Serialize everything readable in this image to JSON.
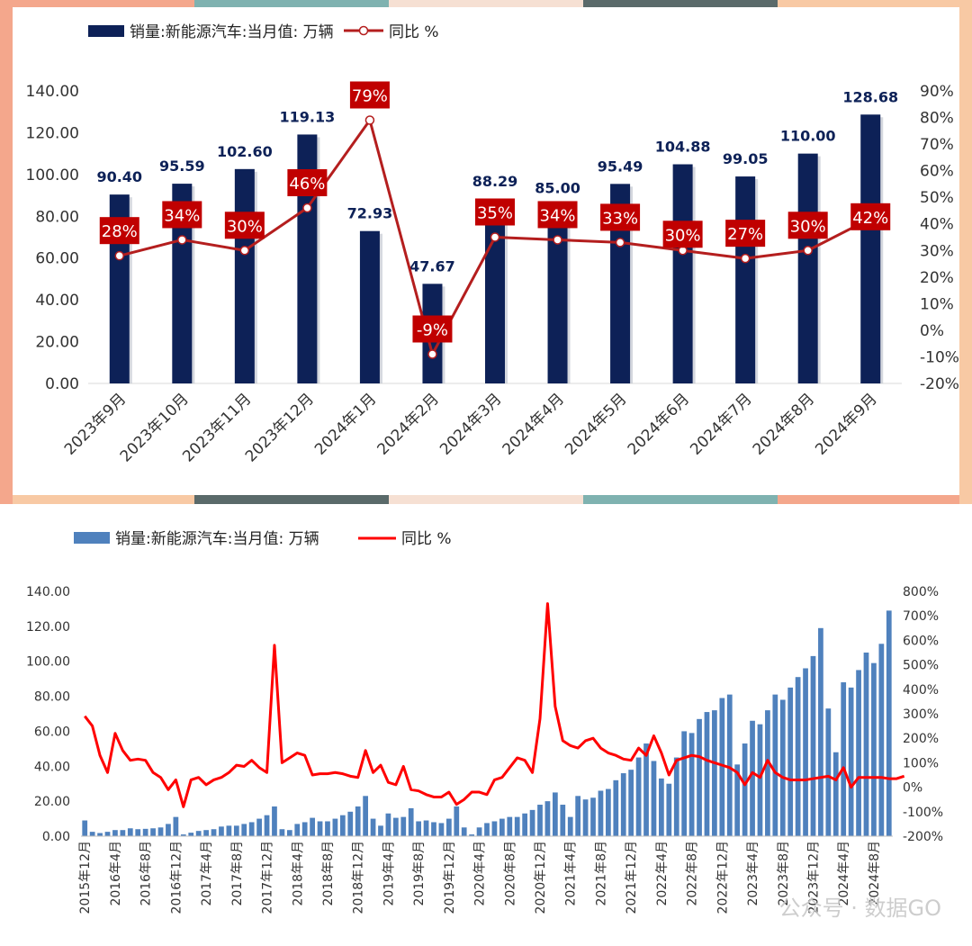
{
  "chart_data": [
    {
      "type": "bar+line",
      "legend": {
        "bar_label": "销量:新能源汽车:当月值: 万辆",
        "line_label": "同比 %",
        "placement": "top-left"
      },
      "categories": [
        "2023年9月",
        "2023年10月",
        "2023年11月",
        "2023年12月",
        "2024年1月",
        "2024年2月",
        "2024年3月",
        "2024年4月",
        "2024年5月",
        "2024年6月",
        "2024年7月",
        "2024年8月",
        "2024年9月"
      ],
      "series": [
        {
          "name": "销量:新能源汽车:当月值: 万辆",
          "type": "bar",
          "axis": "left",
          "values": [
            90.4,
            95.59,
            102.6,
            119.13,
            72.93,
            47.67,
            88.29,
            85.0,
            95.49,
            104.88,
            99.05,
            110.0,
            128.68
          ],
          "value_labels": [
            "90.40",
            "95.59",
            "102.60",
            "119.13",
            "72.93",
            "47.67",
            "88.29",
            "85.00",
            "95.49",
            "104.88",
            "99.05",
            "110.00",
            "128.68"
          ]
        },
        {
          "name": "同比 %",
          "type": "line",
          "axis": "right",
          "values": [
            28,
            34,
            30,
            46,
            79,
            -9,
            35,
            34,
            33,
            30,
            27,
            30,
            42
          ],
          "value_labels": [
            "28%",
            "34%",
            "30%",
            "46%",
            "79%",
            "-9%",
            "35%",
            "34%",
            "33%",
            "30%",
            "27%",
            "30%",
            "42%"
          ]
        }
      ],
      "y_left": {
        "ylim": [
          0,
          140
        ],
        "ticks": [
          "0.00",
          "20.00",
          "40.00",
          "60.00",
          "80.00",
          "100.00",
          "120.00",
          "140.00"
        ]
      },
      "y_right": {
        "ylim": [
          -20,
          90
        ],
        "ticks": [
          "-20%",
          "-10%",
          "0%",
          "10%",
          "20%",
          "30%",
          "40%",
          "50%",
          "60%",
          "70%",
          "80%",
          "90%"
        ]
      },
      "colors": {
        "bar": "#0d2157",
        "line": "#b41e1e",
        "label_box": "#c00000",
        "bar_label_text": "#0d2157",
        "frame_segments": [
          "#f4a78c",
          "#7fb2b0",
          "#f6e0d3",
          "#5a6a6a",
          "#f8c9a4"
        ]
      }
    },
    {
      "type": "bar+line",
      "legend": {
        "bar_label": "销量:新能源汽车:当月值: 万辆",
        "line_label": "同比 %",
        "placement": "top-left"
      },
      "x_tick_labels": [
        "2015年12月",
        "2016年4月",
        "2016年8月",
        "2016年12月",
        "2017年4月",
        "2017年8月",
        "2017年12月",
        "2018年4月",
        "2018年8月",
        "2018年12月",
        "2019年4月",
        "2019年8月",
        "2019年12月",
        "2020年4月",
        "2020年8月",
        "2020年12月",
        "2021年4月",
        "2021年8月",
        "2021年12月",
        "2022年4月",
        "2022年8月",
        "2022年12月",
        "2023年4月",
        "2023年8月",
        "2023年12月",
        "2024年4月",
        "2024年8月"
      ],
      "series": [
        {
          "name": "销量:新能源汽车:当月值: 万辆",
          "type": "bar",
          "axis": "left",
          "values": [
            9.0,
            2.5,
            1.8,
            2.5,
            3.5,
            3.5,
            4.5,
            4.0,
            4.2,
            4.5,
            5.0,
            7.0,
            11.0,
            1.0,
            2.0,
            3.0,
            3.5,
            4.0,
            5.5,
            6.0,
            6.0,
            7.0,
            8.0,
            10.0,
            12.0,
            17.0,
            4.0,
            3.5,
            7.0,
            8.0,
            10.5,
            8.5,
            8.5,
            10.0,
            12.0,
            14.0,
            17.0,
            23.0,
            10.0,
            6.0,
            13.0,
            10.5,
            11.0,
            16.0,
            8.5,
            9.0,
            8.0,
            7.5,
            10.0,
            17.0,
            5.0,
            1.0,
            5.0,
            7.5,
            8.5,
            10.0,
            11.0,
            11.0,
            13.0,
            15.0,
            18.0,
            20.0,
            25.0,
            18.0,
            11.0,
            23.0,
            21.0,
            22.0,
            26.0,
            27.0,
            32.0,
            36.0,
            38.0,
            45.0,
            53.0,
            43.0,
            33.0,
            30.0,
            45.0,
            60.0,
            59.0,
            67.0,
            71.0,
            72.0,
            79.0,
            81.0,
            41.0,
            53.0,
            66.0,
            64.0,
            72.0,
            81.0,
            78.0,
            85.0,
            91.0,
            96.0,
            103.0,
            119.0,
            73.0,
            48.0,
            88.0,
            85.0,
            95.0,
            105.0,
            99.0,
            110.0,
            129.0
          ]
        },
        {
          "name": "同比 %",
          "type": "line",
          "axis": "right",
          "values": [
            290,
            250,
            130,
            60,
            220,
            150,
            110,
            115,
            110,
            60,
            40,
            -10,
            30,
            -80,
            30,
            40,
            10,
            30,
            40,
            60,
            90,
            85,
            110,
            80,
            60,
            580,
            100,
            120,
            140,
            130,
            50,
            55,
            55,
            60,
            55,
            45,
            40,
            150,
            60,
            90,
            20,
            10,
            85,
            -10,
            -15,
            -30,
            -40,
            -40,
            -20,
            -70,
            -50,
            -20,
            -20,
            -30,
            30,
            40,
            80,
            120,
            110,
            60,
            280,
            750,
            330,
            190,
            170,
            160,
            190,
            200,
            160,
            140,
            130,
            115,
            110,
            160,
            130,
            210,
            140,
            50,
            110,
            120,
            130,
            125,
            110,
            100,
            90,
            80,
            60,
            10,
            60,
            40,
            110,
            60,
            40,
            30,
            30,
            30,
            35,
            40,
            45,
            30,
            80,
            0,
            40,
            40,
            40,
            40,
            35,
            35,
            45
          ]
        }
      ],
      "y_left": {
        "ylim": [
          0,
          140
        ],
        "ticks": [
          "0.00",
          "20.00",
          "40.00",
          "60.00",
          "80.00",
          "100.00",
          "120.00",
          "140.00"
        ]
      },
      "y_right": {
        "ylim": [
          -200,
          800
        ],
        "ticks": [
          "-200%",
          "-100%",
          "0%",
          "100%",
          "200%",
          "300%",
          "400%",
          "500%",
          "600%",
          "700%",
          "800%"
        ]
      },
      "colors": {
        "bar": "#4f81bd",
        "line": "#ff0000"
      }
    }
  ],
  "watermark": "公众号 · 数据GO"
}
